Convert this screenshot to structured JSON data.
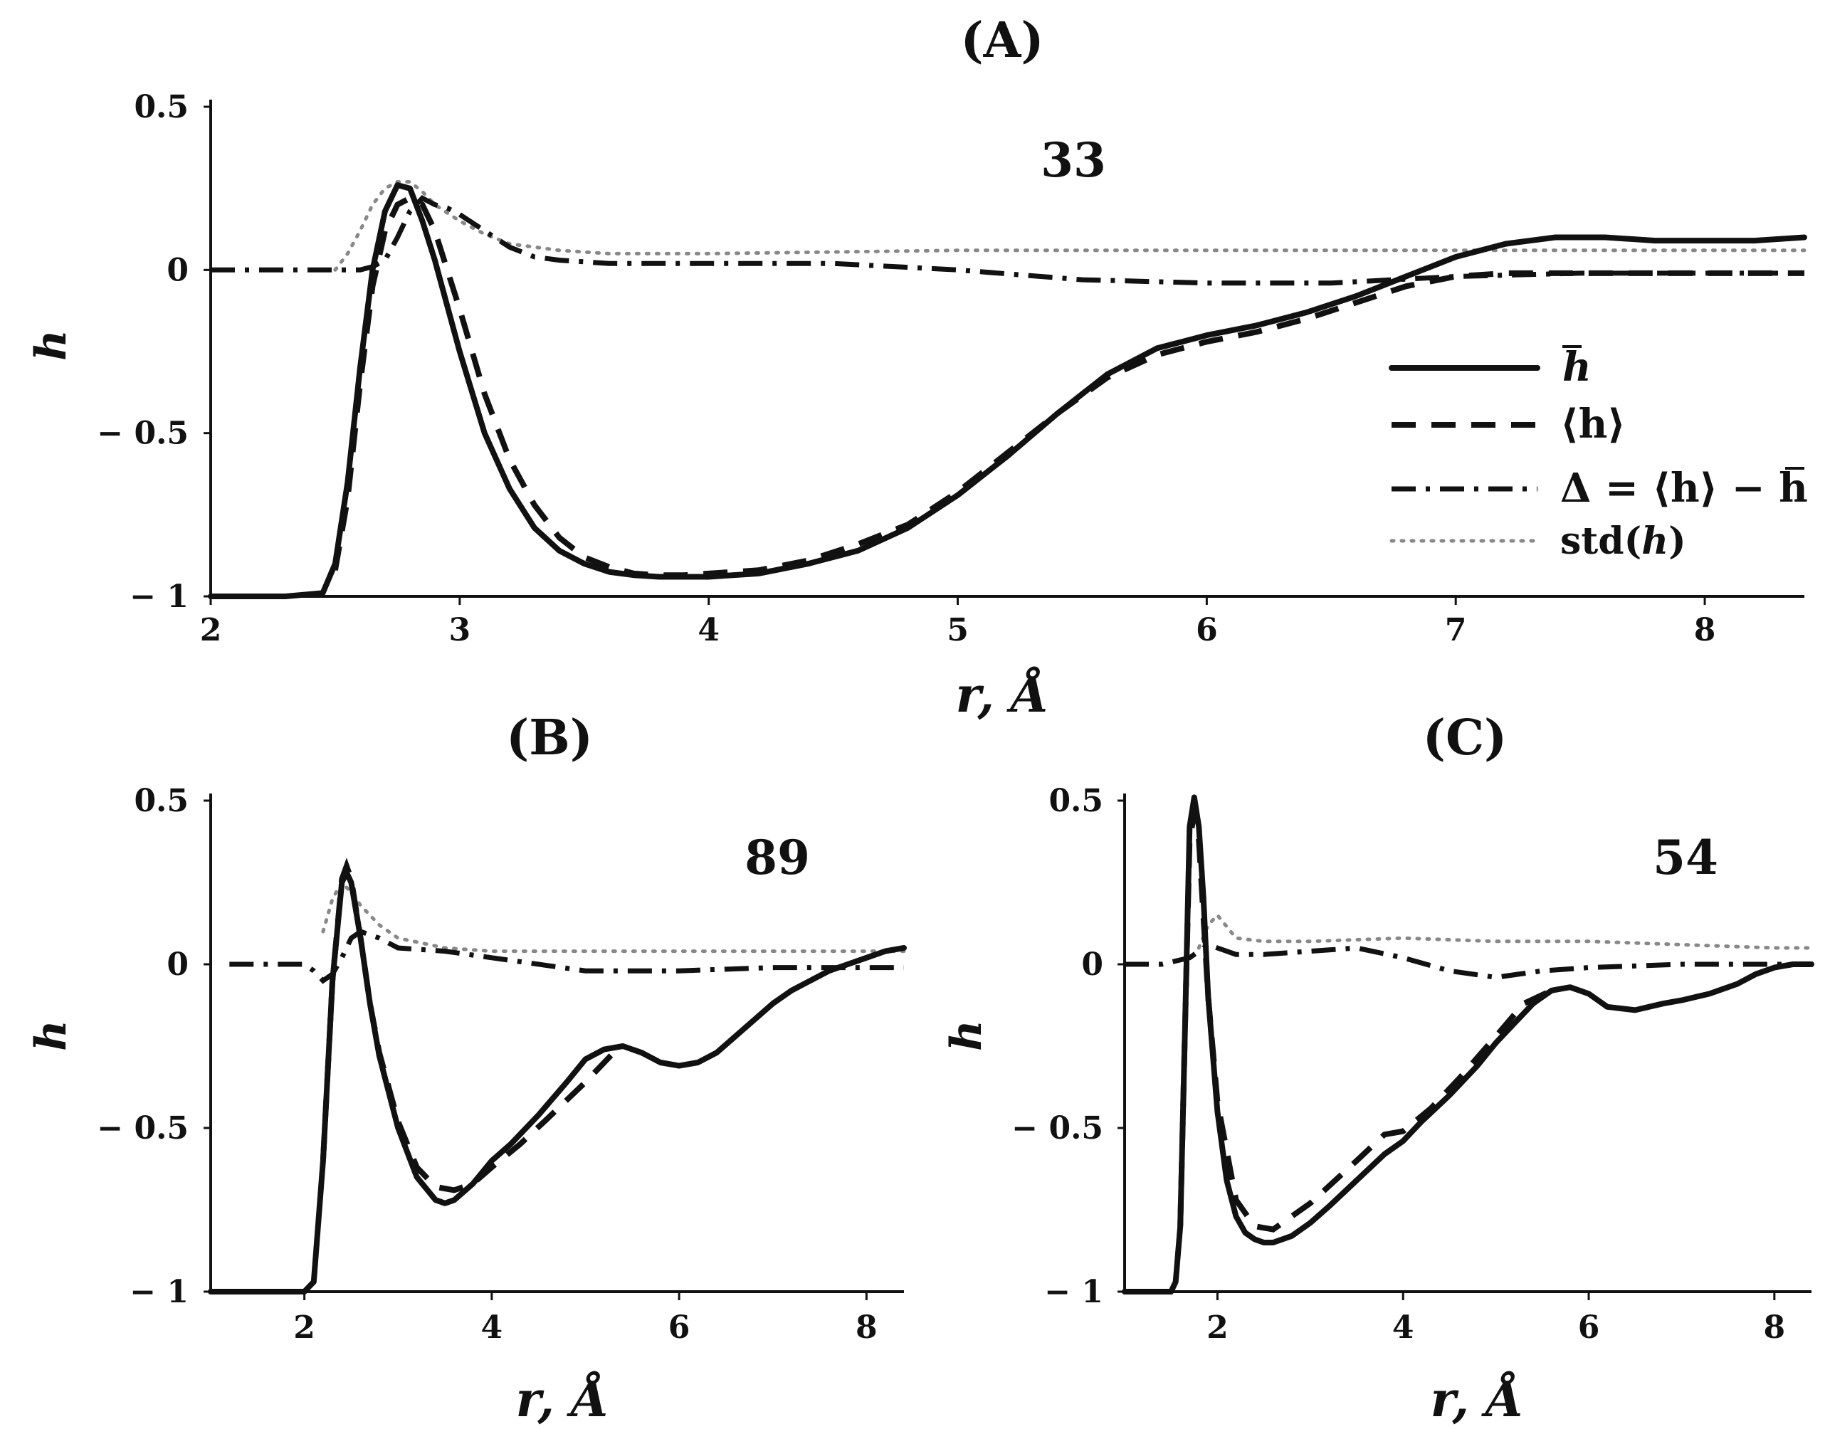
{
  "chart_data": [
    {
      "type": "line",
      "panel": "A",
      "title": "(A)",
      "annotation": "33",
      "xlabel": "r, Å",
      "ylabel": "h",
      "xlim": [
        2,
        8.4
      ],
      "ylim": [
        -1,
        0.5
      ],
      "xticks": [
        "2",
        "3",
        "4",
        "5",
        "6",
        "7",
        "8"
      ],
      "yticks": [
        "0.5",
        "0",
        "− 0.5",
        "− 1"
      ],
      "legend": {
        "position": "center-right",
        "entries": [
          {
            "label_main": "h",
            "label_rest": ""
          },
          {
            "label_main": "⟨h⟩",
            "label_rest": ""
          },
          {
            "label_main": "Δ = ⟨h⟩ − h",
            "label_rest": ""
          },
          {
            "label_main": "std(",
            "label_it": "h",
            "label_rest": ")"
          }
        ]
      },
      "series": [
        {
          "name": "mean_bar",
          "style": "solid",
          "x": [
            2,
            2.3,
            2.45,
            2.5,
            2.55,
            2.6,
            2.65,
            2.7,
            2.75,
            2.8,
            2.85,
            2.9,
            3.0,
            3.1,
            3.2,
            3.3,
            3.4,
            3.5,
            3.6,
            3.7,
            3.8,
            3.9,
            4.0,
            4.2,
            4.4,
            4.6,
            4.8,
            5.0,
            5.2,
            5.4,
            5.6,
            5.8,
            6.0,
            6.2,
            6.4,
            6.6,
            6.8,
            7.0,
            7.2,
            7.4,
            7.6,
            7.8,
            8.0,
            8.2,
            8.4
          ],
          "y": [
            -1,
            -1,
            -0.99,
            -0.9,
            -0.65,
            -0.3,
            0.0,
            0.18,
            0.26,
            0.25,
            0.15,
            0.03,
            -0.25,
            -0.5,
            -0.67,
            -0.79,
            -0.86,
            -0.9,
            -0.925,
            -0.935,
            -0.94,
            -0.94,
            -0.94,
            -0.93,
            -0.9,
            -0.86,
            -0.79,
            -0.69,
            -0.57,
            -0.44,
            -0.32,
            -0.24,
            -0.2,
            -0.17,
            -0.13,
            -0.08,
            -0.02,
            0.04,
            0.08,
            0.1,
            0.1,
            0.09,
            0.09,
            0.09,
            0.1
          ]
        },
        {
          "name": "mean_angle",
          "style": "dashed",
          "x": [
            2.5,
            2.55,
            2.6,
            2.65,
            2.7,
            2.75,
            2.8,
            2.85,
            2.9,
            3.0,
            3.1,
            3.2,
            3.3,
            3.4,
            3.5,
            3.6,
            3.7,
            3.8,
            3.9,
            4.0,
            4.2,
            4.4,
            4.6,
            4.8,
            5.0,
            5.2,
            5.4,
            5.6,
            5.8,
            6.0,
            6.2,
            6.4,
            6.6,
            6.8,
            7.0,
            7.2,
            7.4,
            7.6,
            7.8,
            8.0,
            8.2,
            8.4
          ],
          "y": [
            -0.92,
            -0.7,
            -0.35,
            -0.05,
            0.12,
            0.2,
            0.22,
            0.2,
            0.12,
            -0.12,
            -0.38,
            -0.58,
            -0.72,
            -0.82,
            -0.88,
            -0.91,
            -0.93,
            -0.935,
            -0.935,
            -0.93,
            -0.92,
            -0.89,
            -0.84,
            -0.78,
            -0.68,
            -0.56,
            -0.44,
            -0.33,
            -0.26,
            -0.22,
            -0.19,
            -0.15,
            -0.1,
            -0.05,
            -0.02,
            -0.01,
            -0.01,
            -0.01,
            -0.01,
            -0.01,
            -0.01,
            -0.01
          ]
        },
        {
          "name": "delta",
          "style": "dashdot",
          "x": [
            2,
            2.2,
            2.4,
            2.5,
            2.6,
            2.65,
            2.7,
            2.75,
            2.8,
            2.85,
            2.9,
            2.95,
            3.0,
            3.1,
            3.2,
            3.3,
            3.4,
            3.6,
            3.8,
            4.0,
            4.5,
            5.0,
            5.5,
            6.0,
            6.5,
            7.0,
            7.5,
            8.0,
            8.4
          ],
          "y": [
            0,
            0,
            0,
            0,
            0,
            0.01,
            0.03,
            0.1,
            0.18,
            0.22,
            0.2,
            0.19,
            0.17,
            0.12,
            0.07,
            0.04,
            0.03,
            0.02,
            0.02,
            0.02,
            0.02,
            0.0,
            -0.03,
            -0.04,
            -0.04,
            -0.02,
            -0.01,
            -0.01,
            -0.01
          ]
        },
        {
          "name": "std",
          "style": "dotted",
          "x": [
            2.5,
            2.55,
            2.6,
            2.65,
            2.7,
            2.75,
            2.8,
            2.85,
            2.9,
            3.0,
            3.1,
            3.2,
            3.3,
            3.4,
            3.6,
            4.0,
            5.0,
            6.0,
            7.0,
            8.0,
            8.4
          ],
          "y": [
            0.0,
            0.05,
            0.12,
            0.2,
            0.25,
            0.27,
            0.27,
            0.24,
            0.2,
            0.15,
            0.11,
            0.08,
            0.07,
            0.06,
            0.05,
            0.05,
            0.06,
            0.06,
            0.06,
            0.06,
            0.06
          ]
        }
      ]
    },
    {
      "type": "line",
      "panel": "B",
      "title": "(B)",
      "annotation": "89",
      "xlabel": "r, Å",
      "ylabel": "h",
      "xlim": [
        1,
        8.4
      ],
      "ylim": [
        -1,
        0.5
      ],
      "xticks": [
        "2",
        "4",
        "6",
        "8"
      ],
      "yticks": [
        "0.5",
        "0",
        "− 0.5",
        "− 1"
      ],
      "series": [
        {
          "name": "mean_bar",
          "style": "solid",
          "x": [
            1,
            2.0,
            2.1,
            2.2,
            2.3,
            2.4,
            2.45,
            2.5,
            2.6,
            2.7,
            2.8,
            3.0,
            3.2,
            3.4,
            3.5,
            3.6,
            3.8,
            4.0,
            4.2,
            4.5,
            4.8,
            5.0,
            5.2,
            5.4,
            5.6,
            5.8,
            6.0,
            6.2,
            6.4,
            6.6,
            6.8,
            7.0,
            7.2,
            7.4,
            7.6,
            7.8,
            8.0,
            8.2,
            8.4
          ],
          "y": [
            -1,
            -1,
            -0.97,
            -0.6,
            -0.05,
            0.25,
            0.28,
            0.25,
            0.08,
            -0.12,
            -0.28,
            -0.5,
            -0.65,
            -0.72,
            -0.73,
            -0.72,
            -0.67,
            -0.6,
            -0.55,
            -0.46,
            -0.36,
            -0.29,
            -0.26,
            -0.25,
            -0.27,
            -0.3,
            -0.31,
            -0.3,
            -0.27,
            -0.22,
            -0.17,
            -0.12,
            -0.08,
            -0.05,
            -0.02,
            0.0,
            0.02,
            0.04,
            0.05
          ]
        },
        {
          "name": "mean_angle",
          "style": "dashed",
          "x": [
            2.2,
            2.3,
            2.4,
            2.45,
            2.5,
            2.6,
            2.7,
            2.8,
            3.0,
            3.2,
            3.4,
            3.6,
            3.8,
            4.0,
            4.3,
            4.6,
            5.0,
            5.3
          ],
          "y": [
            -0.6,
            -0.05,
            0.26,
            0.3,
            0.26,
            0.08,
            -0.12,
            -0.27,
            -0.48,
            -0.62,
            -0.68,
            -0.69,
            -0.67,
            -0.62,
            -0.55,
            -0.47,
            -0.36,
            -0.27
          ]
        },
        {
          "name": "delta",
          "style": "dashdot",
          "x": [
            1.2,
            1.6,
            2.0,
            2.1,
            2.2,
            2.3,
            2.4,
            2.5,
            2.6,
            2.8,
            3.0,
            3.5,
            4.0,
            5.0,
            6.0,
            7.0,
            7.5,
            8.0,
            8.4
          ],
          "y": [
            0,
            0,
            0,
            -0.02,
            -0.05,
            -0.03,
            0.02,
            0.08,
            0.1,
            0.08,
            0.05,
            0.04,
            0.02,
            -0.02,
            -0.02,
            -0.01,
            -0.01,
            -0.01,
            -0.01
          ]
        },
        {
          "name": "std",
          "style": "dotted",
          "x": [
            2.2,
            2.3,
            2.4,
            2.5,
            2.6,
            2.8,
            3.0,
            3.5,
            4.0,
            5.0,
            6.0,
            7.0,
            8.0,
            8.4
          ],
          "y": [
            0.1,
            0.2,
            0.25,
            0.22,
            0.18,
            0.12,
            0.08,
            0.05,
            0.04,
            0.04,
            0.04,
            0.04,
            0.04,
            0.04
          ]
        }
      ]
    },
    {
      "type": "line",
      "panel": "C",
      "title": "(C)",
      "annotation": "54",
      "xlabel": "r, Å",
      "ylabel": "h",
      "xlim": [
        1,
        8.4
      ],
      "ylim": [
        -1,
        0.5
      ],
      "xticks": [
        "2",
        "4",
        "6",
        "8"
      ],
      "yticks": [
        "0.5",
        "0",
        "− 0.5",
        "− 1"
      ],
      "series": [
        {
          "name": "mean_bar",
          "style": "solid",
          "x": [
            1,
            1.5,
            1.55,
            1.6,
            1.65,
            1.7,
            1.75,
            1.8,
            1.85,
            1.9,
            2.0,
            2.1,
            2.2,
            2.3,
            2.4,
            2.5,
            2.6,
            2.8,
            3.0,
            3.2,
            3.5,
            3.8,
            4.0,
            4.2,
            4.5,
            4.8,
            5.0,
            5.2,
            5.4,
            5.6,
            5.8,
            6.0,
            6.2,
            6.5,
            6.8,
            7.0,
            7.3,
            7.6,
            7.8,
            8.0,
            8.2,
            8.4
          ],
          "y": [
            -1,
            -1,
            -0.97,
            -0.8,
            -0.2,
            0.42,
            0.51,
            0.42,
            0.2,
            -0.1,
            -0.45,
            -0.66,
            -0.77,
            -0.82,
            -0.84,
            -0.85,
            -0.85,
            -0.83,
            -0.79,
            -0.74,
            -0.66,
            -0.58,
            -0.54,
            -0.48,
            -0.4,
            -0.31,
            -0.24,
            -0.18,
            -0.12,
            -0.08,
            -0.07,
            -0.09,
            -0.13,
            -0.14,
            -0.12,
            -0.11,
            -0.09,
            -0.06,
            -0.03,
            -0.01,
            0.0,
            0.0
          ]
        },
        {
          "name": "mean_angle",
          "style": "dashed",
          "x": [
            1.6,
            1.65,
            1.7,
            1.75,
            1.8,
            1.9,
            2.0,
            2.2,
            2.4,
            2.6,
            3.0,
            3.5,
            3.8,
            4.0,
            4.3,
            4.6,
            5.0,
            5.3,
            5.6
          ],
          "y": [
            -0.8,
            -0.2,
            0.38,
            0.46,
            0.38,
            -0.1,
            -0.42,
            -0.72,
            -0.8,
            -0.81,
            -0.73,
            -0.6,
            -0.52,
            -0.51,
            -0.44,
            -0.35,
            -0.22,
            -0.12,
            -0.08
          ]
        },
        {
          "name": "delta",
          "style": "dashdot",
          "x": [
            1.0,
            1.4,
            1.7,
            1.8,
            1.9,
            2.0,
            2.2,
            2.5,
            3.0,
            3.5,
            4.0,
            4.5,
            5.0,
            5.5,
            6.0,
            7.0,
            7.5,
            8.0,
            8.4
          ],
          "y": [
            0,
            0,
            0.02,
            0.04,
            0.06,
            0.05,
            0.03,
            0.03,
            0.04,
            0.05,
            0.02,
            -0.02,
            -0.04,
            -0.02,
            -0.01,
            0.0,
            0.0,
            0.0,
            0.0
          ]
        },
        {
          "name": "std",
          "style": "dotted",
          "x": [
            1.8,
            1.9,
            2.0,
            2.2,
            2.5,
            3.0,
            4.0,
            5.0,
            6.0,
            7.0,
            8.0,
            8.4
          ],
          "y": [
            0.05,
            0.12,
            0.15,
            0.08,
            0.07,
            0.07,
            0.08,
            0.07,
            0.07,
            0.06,
            0.05,
            0.05
          ]
        }
      ]
    }
  ]
}
